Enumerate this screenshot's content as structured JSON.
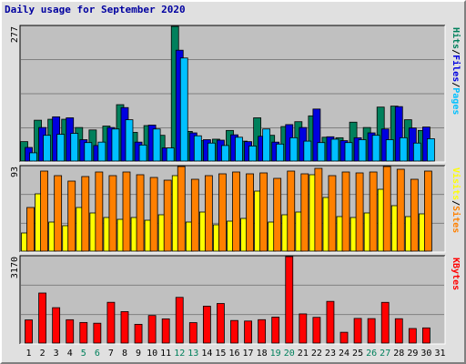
{
  "chart_data": {
    "title": "Daily usage for September 2020",
    "title_color": "#0000a0",
    "days": [
      "1",
      "2",
      "3",
      "4",
      "5",
      "6",
      "7",
      "8",
      "9",
      "10",
      "11",
      "12",
      "13",
      "14",
      "15",
      "16",
      "17",
      "18",
      "19",
      "20",
      "21",
      "22",
      "23",
      "24",
      "25",
      "26",
      "27",
      "28",
      "29",
      "30",
      "31"
    ],
    "weekend_days": [
      "5",
      "6",
      "12",
      "13",
      "19",
      "20",
      "26",
      "27"
    ],
    "weekend_color": "#00805c",
    "weekday_color": "#000000",
    "panels": [
      {
        "type": "bar",
        "max_label": "277",
        "ylim": [
          0,
          277
        ],
        "series": [
          {
            "name": "Hits",
            "color": "#00805c",
            "values": [
              40,
              84,
              86,
              86,
              69,
              64,
              72,
              116,
              59,
              73,
              53,
              277,
              61,
              42,
              45,
              63,
              41,
              89,
              53,
              71,
              81,
              93,
              49,
              48,
              80,
              69,
              111,
              113,
              85,
              63,
              0
            ]
          },
          {
            "name": "Files",
            "color": "#0000e0",
            "values": [
              28,
              69,
              91,
              89,
              44,
              32,
              69,
              110,
              39,
              74,
              27,
              228,
              58,
              44,
              43,
              54,
              40,
              51,
              39,
              75,
              69,
              107,
              50,
              42,
              48,
              58,
              66,
              112,
              68,
              70,
              0
            ]
          },
          {
            "name": "Pages",
            "color": "#00c0ff",
            "values": [
              17,
              53,
              55,
              57,
              38,
              39,
              66,
              85,
              33,
              66,
              27,
              212,
              52,
              37,
              32,
              49,
              31,
              66,
              35,
              48,
              41,
              38,
              45,
              38,
              44,
              53,
              44,
              48,
              37,
              46,
              0
            ]
          }
        ],
        "axis_label": [
          "Hits",
          "/",
          "Files",
          "/",
          "Pages"
        ]
      },
      {
        "type": "bar",
        "max_label": "93",
        "ylim": [
          0,
          93
        ],
        "series": [
          {
            "name": "Visits",
            "color": "#ffff00",
            "values": [
              20,
              63,
              32,
              28,
              48,
              42,
              37,
              35,
              37,
              34,
              40,
              83,
              32,
              43,
              29,
              33,
              36,
              66,
              32,
              40,
              43,
              84,
              59,
              38,
              37,
              42,
              68,
              50,
              38,
              41,
              0
            ]
          },
          {
            "name": "Sites",
            "color": "#ff8000",
            "values": [
              48,
              88,
              83,
              77,
              82,
              87,
              83,
              87,
              84,
              81,
              78,
              93,
              79,
              83,
              85,
              87,
              85,
              86,
              80,
              88,
              85,
              91,
              83,
              87,
              86,
              87,
              93,
              90,
              79,
              88,
              0
            ]
          }
        ],
        "axis_label": [
          "Visits",
          "/",
          "Sites"
        ]
      },
      {
        "type": "bar",
        "max_label": "3170",
        "ylim": [
          0,
          3170
        ],
        "series": [
          {
            "name": "KBytes",
            "color": "#ff0000",
            "values": [
              850,
              1835,
              1298,
              856,
              755,
              728,
              1495,
              1153,
              688,
              1011,
              887,
              1676,
              750,
              1352,
              1451,
              828,
              808,
              858,
              951,
              3170,
              1070,
              943,
              1529,
              396,
              904,
              897,
              1493,
              893,
              534,
              557,
              0
            ]
          }
        ],
        "axis_label": [
          "KBytes"
        ]
      }
    ]
  }
}
